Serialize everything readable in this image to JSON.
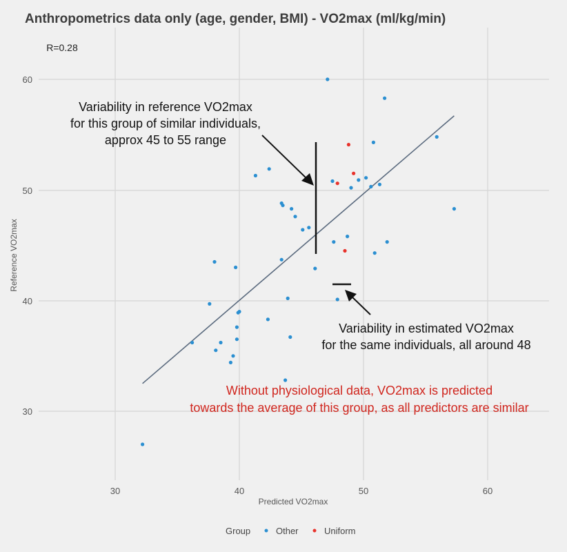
{
  "chart_data": {
    "type": "scatter",
    "title": "Anthropometrics data only (age, gender, BMI) - VO2max (ml/kg/min)",
    "xlabel": "Predicted VO2max",
    "ylabel": "Reference VO2max",
    "xlim": [
      24.5,
      65
    ],
    "ylim": [
      23.5,
      63.5
    ],
    "x_ticks": [
      30,
      40,
      50,
      60
    ],
    "y_ticks": [
      30,
      40,
      50,
      60
    ],
    "grid": true,
    "legend_position": "bottom",
    "legend_title": "Group",
    "annotation_r": "R=0.28",
    "regression_line": {
      "x0": 32.2,
      "y0": 32.5,
      "x1": 57.3,
      "y1": 56.7,
      "color": "#5a6a7e"
    },
    "series": [
      {
        "name": "Other",
        "color": "#2b8fd1",
        "points": [
          [
            47.1,
            60.0
          ],
          [
            51.7,
            58.3
          ],
          [
            55.9,
            54.8
          ],
          [
            50.8,
            54.3
          ],
          [
            42.4,
            51.9
          ],
          [
            41.3,
            51.3
          ],
          [
            47.5,
            50.8
          ],
          [
            49.6,
            50.9
          ],
          [
            50.2,
            51.1
          ],
          [
            49.0,
            50.2
          ],
          [
            50.6,
            50.3
          ],
          [
            51.3,
            50.5
          ],
          [
            43.4,
            48.8
          ],
          [
            43.5,
            48.6
          ],
          [
            44.2,
            48.3
          ],
          [
            44.5,
            47.6
          ],
          [
            45.1,
            46.4
          ],
          [
            45.6,
            46.6
          ],
          [
            57.3,
            48.3
          ],
          [
            47.6,
            45.3
          ],
          [
            48.7,
            45.8
          ],
          [
            51.9,
            45.3
          ],
          [
            50.9,
            44.3
          ],
          [
            38.0,
            43.5
          ],
          [
            39.7,
            43.0
          ],
          [
            43.4,
            43.7
          ],
          [
            46.1,
            42.9
          ],
          [
            47.9,
            40.1
          ],
          [
            43.9,
            40.2
          ],
          [
            37.6,
            39.7
          ],
          [
            40.0,
            39.0
          ],
          [
            39.9,
            38.9
          ],
          [
            39.8,
            37.6
          ],
          [
            42.3,
            38.3
          ],
          [
            44.1,
            36.7
          ],
          [
            36.2,
            36.2
          ],
          [
            39.8,
            36.5
          ],
          [
            38.5,
            36.2
          ],
          [
            38.1,
            35.5
          ],
          [
            39.5,
            35.0
          ],
          [
            39.3,
            34.4
          ],
          [
            43.7,
            32.8
          ],
          [
            32.2,
            27.0
          ]
        ]
      },
      {
        "name": "Uniform",
        "color": "#e8322b",
        "points": [
          [
            48.8,
            54.1
          ],
          [
            49.2,
            51.5
          ],
          [
            47.9,
            50.6
          ],
          [
            48.5,
            44.5
          ]
        ]
      }
    ],
    "annotations": [
      {
        "text": [
          "Variability in reference VO2max",
          "for this group of similar individuals,",
          "approx 45 to 55 range"
        ],
        "color": "#111111",
        "marker": {
          "type": "vertical-bar",
          "x": 46.1,
          "y_from": 44.1,
          "y_to": 54.4
        }
      },
      {
        "text": [
          "Variability in estimated VO2max",
          "for the same individuals, all around 48"
        ],
        "color": "#111111",
        "marker": {
          "type": "horizontal-bar",
          "y": 41.5,
          "x_from": 47.3,
          "x_to": 48.6
        }
      },
      {
        "text": [
          "Without physiological data, VO2max is predicted",
          "towards the average of this group, as all predictors are similar"
        ],
        "color": "#d0261e"
      }
    ]
  },
  "title": "Anthropometrics data only (age, gender, BMI) - VO2max (ml/kg/min)",
  "r_label": "R=0.28",
  "axes": {
    "x_title": "Predicted VO2max",
    "y_title": "Reference VO2max",
    "x_ticks": [
      "30",
      "40",
      "50",
      "60"
    ],
    "y_ticks": [
      "60",
      "50",
      "40",
      "30"
    ]
  },
  "annotations": {
    "ref_line1": "Variability in reference VO2max",
    "ref_line2": "for this group of similar individuals,",
    "ref_line3": "approx 45 to 55 range",
    "est_line1": "Variability in estimated VO2max",
    "est_line2": "for the same individuals, all around 48",
    "red_line1": "Without physiological data, VO2max is predicted",
    "red_line2": "towards the average of this group, as all predictors are similar"
  },
  "legend": {
    "title": "Group",
    "items": [
      {
        "label": "Other",
        "color": "#2b8fd1"
      },
      {
        "label": "Uniform",
        "color": "#e8322b"
      }
    ]
  }
}
